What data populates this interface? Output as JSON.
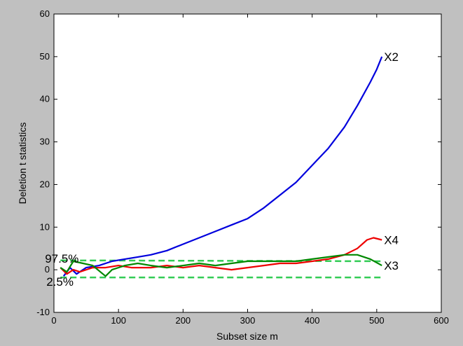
{
  "chart_data": {
    "type": "line",
    "title": "",
    "xlabel": "Subset size m",
    "ylabel": "Deletion t statistics",
    "xlim": [
      0,
      600
    ],
    "ylim": [
      -10,
      60
    ],
    "xticks": [
      0,
      100,
      200,
      300,
      400,
      500,
      600
    ],
    "yticks": [
      -10,
      0,
      10,
      20,
      30,
      40,
      50,
      60
    ],
    "grid": false,
    "legend": "none",
    "background": "#c0c0c0",
    "plot_background": "#ffffff",
    "series": [
      {
        "name": "X2",
        "color": "#0000dd",
        "x": [
          15,
          25,
          35,
          50,
          70,
          90,
          110,
          130,
          150,
          175,
          200,
          225,
          250,
          275,
          300,
          325,
          350,
          375,
          400,
          425,
          450,
          470,
          490,
          500,
          508
        ],
        "y": [
          -1.5,
          0.5,
          -1.0,
          0.5,
          1.0,
          2.0,
          2.5,
          3.0,
          3.5,
          4.5,
          6.0,
          7.5,
          9.0,
          10.5,
          12.0,
          14.5,
          17.5,
          20.5,
          24.5,
          28.5,
          33.5,
          38.5,
          44.0,
          47.0,
          50.0
        ]
      },
      {
        "name": "X4",
        "color": "#ee0000",
        "x": [
          10,
          20,
          30,
          40,
          60,
          80,
          100,
          120,
          150,
          175,
          200,
          225,
          250,
          275,
          300,
          325,
          350,
          375,
          400,
          425,
          450,
          470,
          485,
          495,
          508
        ],
        "y": [
          0.5,
          -1.0,
          0.0,
          -0.5,
          0.5,
          0.5,
          1.0,
          0.5,
          0.5,
          1.0,
          0.5,
          1.0,
          0.5,
          0.0,
          0.5,
          1.0,
          1.5,
          1.5,
          2.0,
          2.5,
          3.5,
          5.0,
          7.0,
          7.5,
          7.0
        ]
      },
      {
        "name": "X3",
        "color": "#008800",
        "x": [
          10,
          20,
          30,
          45,
          60,
          80,
          90,
          110,
          130,
          150,
          175,
          200,
          225,
          250,
          275,
          300,
          325,
          350,
          375,
          400,
          425,
          450,
          470,
          490,
          508
        ],
        "y": [
          0.5,
          -0.5,
          2.0,
          1.5,
          1.0,
          -1.5,
          0.0,
          1.0,
          1.5,
          1.0,
          0.5,
          1.0,
          1.5,
          1.0,
          1.5,
          2.0,
          2.0,
          2.0,
          2.0,
          2.5,
          3.0,
          3.5,
          3.5,
          2.5,
          1.0
        ]
      }
    ],
    "reference_lines": [
      {
        "label": "97.5%",
        "color": "#33cc55",
        "x": [
          10,
          510
        ],
        "y": [
          2.2,
          2.0
        ]
      },
      {
        "label": "2.5%",
        "color": "#33cc55",
        "x": [
          10,
          510
        ],
        "y": [
          -1.8,
          -1.8
        ]
      }
    ]
  }
}
